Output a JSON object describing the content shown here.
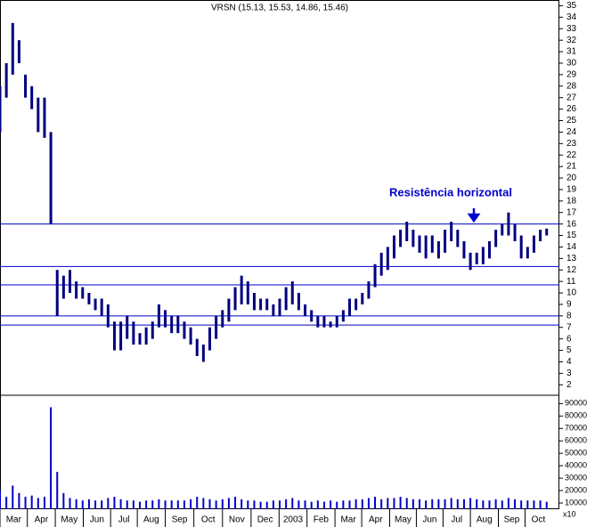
{
  "chart_data": {
    "type": "hilo",
    "title": "VRSN (15.13, 15.53, 14.86, 15.46)",
    "annotation": "Resistência horizontal",
    "volume_unit": "x10",
    "x": [
      0,
      1,
      2,
      3,
      4,
      5,
      6,
      7,
      8,
      9,
      10,
      11,
      12,
      13,
      14,
      15,
      16,
      17,
      18,
      19,
      20,
      21,
      22,
      23,
      24,
      25,
      26,
      27,
      28,
      29,
      30,
      31,
      32,
      33,
      34,
      35,
      36,
      37,
      38,
      39,
      40,
      41,
      42,
      43,
      44,
      45,
      46,
      47,
      48,
      49,
      50,
      51,
      52,
      53,
      54,
      55,
      56,
      57,
      58,
      59,
      60,
      61,
      62,
      63,
      64,
      65,
      66,
      67,
      68,
      69,
      70,
      71,
      72,
      73,
      74,
      75,
      76,
      77,
      78,
      79,
      80,
      81,
      82,
      83,
      84,
      85,
      86
    ],
    "low": [
      24,
      27,
      29,
      30,
      27,
      26,
      24,
      23.5,
      16,
      8,
      9.5,
      10,
      9.5,
      9.5,
      9,
      8.5,
      8,
      7,
      5,
      5,
      6,
      5.5,
      5.5,
      5.5,
      6,
      7,
      7,
      6.5,
      6.5,
      6,
      5.5,
      4.5,
      4,
      5,
      6,
      7,
      7.5,
      8.5,
      9,
      9,
      8.5,
      8.5,
      8.5,
      8,
      8,
      8.5,
      9,
      8.5,
      8,
      7.5,
      7,
      7,
      7,
      7,
      7.5,
      8,
      8.5,
      9,
      9.5,
      10.5,
      11.5,
      12,
      13,
      14,
      14.5,
      14,
      13.5,
      13,
      13.5,
      13,
      13.5,
      14.5,
      14,
      13,
      12,
      12.5,
      12.5,
      13,
      14,
      15,
      15,
      14.5,
      13,
      13,
      13.5,
      14.5,
      15
    ],
    "high": [
      28,
      30,
      33.5,
      32,
      29,
      28,
      27,
      27,
      24,
      12,
      11.5,
      12,
      11,
      10.5,
      10,
      9.5,
      9.5,
      9,
      7.5,
      7.5,
      8,
      7.5,
      6.5,
      7,
      7.5,
      9,
      8.5,
      8,
      8,
      7.5,
      7,
      6,
      5.5,
      7,
      8,
      8.5,
      9.5,
      10.5,
      11.5,
      11,
      10,
      9.5,
      9.5,
      9,
      9.5,
      10.5,
      11,
      10,
      9,
      8.5,
      8,
      8,
      7.5,
      8,
      8.5,
      9.5,
      9.5,
      10,
      11,
      12.5,
      13.5,
      14,
      15,
      15.5,
      16.2,
      15.5,
      15,
      15,
      15,
      14.5,
      15.5,
      16.2,
      15.5,
      14.5,
      13.5,
      13.5,
      14,
      14.5,
      15.5,
      16,
      17,
      16,
      15,
      14,
      15,
      15.5,
      15.6
    ],
    "volume": [
      20000,
      15000,
      24000,
      18000,
      15000,
      16000,
      14000,
      15000,
      87000,
      35000,
      18000,
      14000,
      13000,
      12000,
      13000,
      12000,
      12000,
      14000,
      15000,
      13000,
      12000,
      12000,
      11000,
      12000,
      12000,
      13000,
      12000,
      12000,
      12000,
      12000,
      13000,
      15000,
      14000,
      13000,
      12000,
      13000,
      14000,
      15000,
      13000,
      12000,
      12000,
      11000,
      11000,
      12000,
      12000,
      13000,
      14000,
      12000,
      12000,
      11000,
      12000,
      11000,
      12000,
      11000,
      12000,
      12000,
      13000,
      13000,
      14000,
      15000,
      13000,
      14000,
      14000,
      15000,
      14000,
      13000,
      13000,
      12000,
      13000,
      13000,
      13000,
      14000,
      13000,
      13000,
      14000,
      13000,
      12000,
      12000,
      13000,
      12000,
      14000,
      13000,
      12000,
      12000,
      12000,
      12000,
      11000
    ],
    "price_color": "#000080",
    "volume_color": "#0000cc",
    "line_color": "#0000cc",
    "hlines": [
      16,
      12.3,
      10.7,
      8,
      7.2
    ],
    "xlim": [
      0,
      88
    ],
    "xticks": [
      {
        "value": 0,
        "label": "Mar"
      },
      {
        "value": 4.3,
        "label": "Apr"
      },
      {
        "value": 8.7,
        "label": "May"
      },
      {
        "value": 13.1,
        "label": "Jun"
      },
      {
        "value": 17.4,
        "label": "Jul"
      },
      {
        "value": 21.6,
        "label": "Aug"
      },
      {
        "value": 26,
        "label": "Sep"
      },
      {
        "value": 30.5,
        "label": "Oct"
      },
      {
        "value": 35,
        "label": "Nov"
      },
      {
        "value": 39.5,
        "label": "Dec"
      },
      {
        "value": 43.9,
        "label": "2003"
      },
      {
        "value": 48.3,
        "label": "Feb"
      },
      {
        "value": 52.7,
        "label": "Mar"
      },
      {
        "value": 56.9,
        "label": "Apr"
      },
      {
        "value": 61.3,
        "label": "May"
      },
      {
        "value": 65.5,
        "label": "Jun"
      },
      {
        "value": 69.7,
        "label": "Jul"
      },
      {
        "value": 74,
        "label": "Aug"
      },
      {
        "value": 78.4,
        "label": "Sep"
      },
      {
        "value": 82.6,
        "label": "Oct"
      }
    ],
    "ylim": [
      1.4,
      35.5
    ],
    "yticks": [
      2,
      3,
      4,
      5,
      6,
      7,
      8,
      9,
      10,
      11,
      12,
      13,
      14,
      15,
      16,
      17,
      18,
      19,
      20,
      21,
      22,
      23,
      24,
      25,
      26,
      27,
      28,
      29,
      30,
      31,
      32,
      33,
      34,
      35
    ],
    "y2lim": [
      5000,
      96000
    ],
    "y2ticks": [
      10000,
      20000,
      30000,
      40000,
      50000,
      60000,
      70000,
      80000,
      90000
    ]
  }
}
